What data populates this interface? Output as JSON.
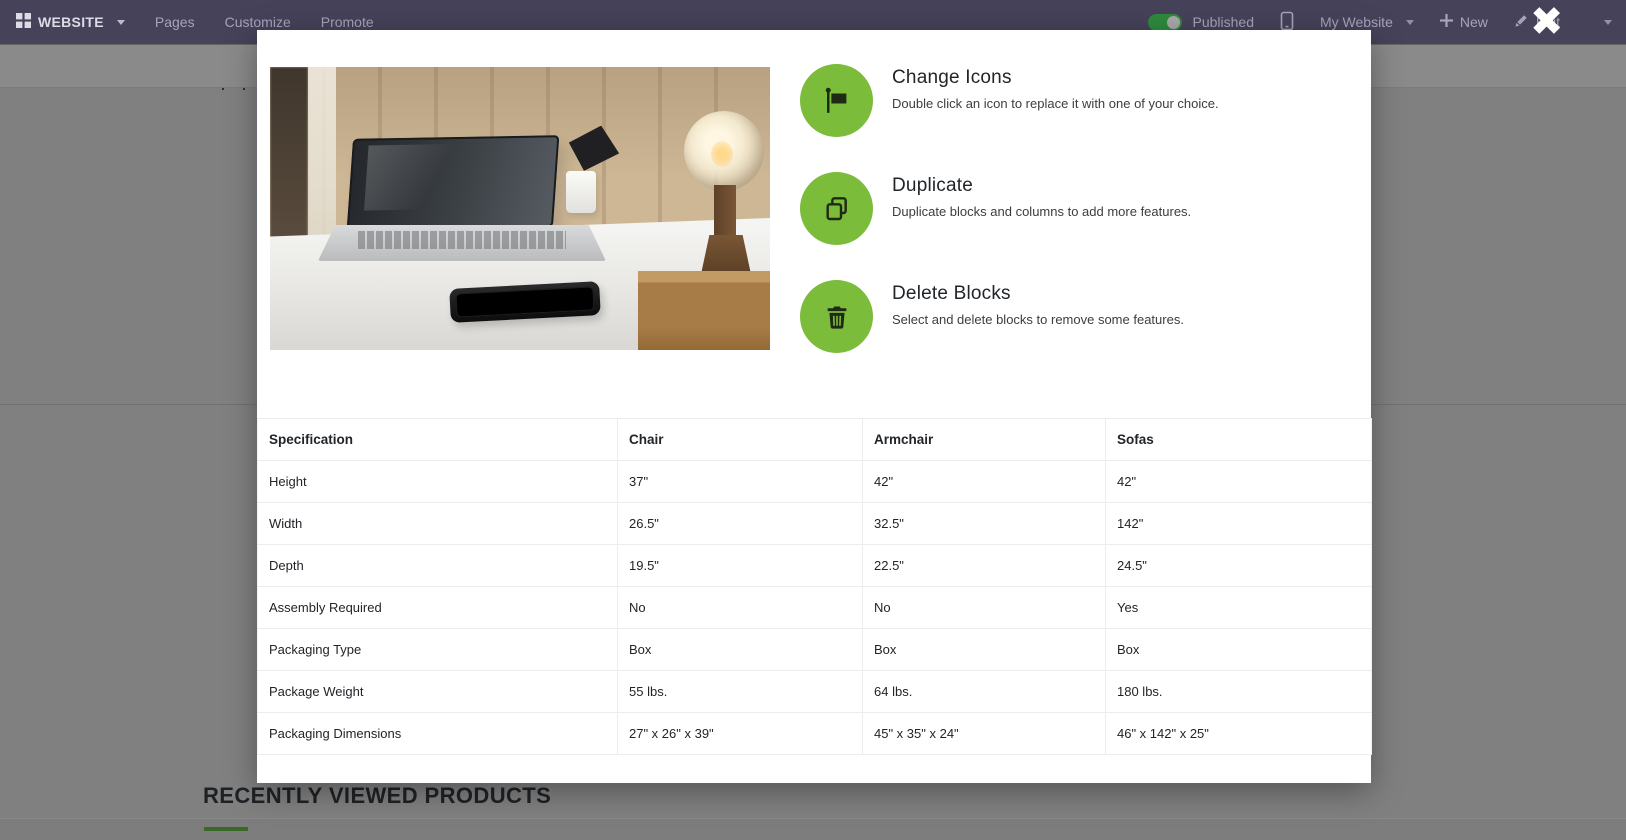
{
  "navbar": {
    "brand": {
      "label": "WEBSITE"
    },
    "menu_items": [
      "Pages",
      "Customize",
      "Promote"
    ],
    "right": {
      "published_label": "Published",
      "published_state": "on",
      "my_website_label": "My Website",
      "new_label": "New",
      "edit_label": "Edit",
      "close_glyph": "✖"
    },
    "colors": {
      "background": "#46425a",
      "text_muted": "#a7a3ba",
      "text_bright": "#dcdbe6",
      "toggle_on": "#2e8b3d"
    }
  },
  "modal": {
    "accent_color": "#7cbc3b",
    "features": [
      {
        "icon": "flag-icon",
        "title": "Change Icons",
        "description": "Double click an icon to replace it with one of your choice."
      },
      {
        "icon": "copy-icon",
        "title": "Duplicate",
        "description": "Duplicate blocks and columns to add more features."
      },
      {
        "icon": "trash-icon",
        "title": "Delete Blocks",
        "description": "Select and delete blocks to remove some features."
      }
    ],
    "table": {
      "headers": [
        "Specification",
        "Chair",
        "Armchair",
        "Sofas"
      ],
      "rows": [
        [
          "Height",
          "37\"",
          "42\"",
          "42\""
        ],
        [
          "Width",
          "26.5\"",
          "32.5\"",
          "142\""
        ],
        [
          "Depth",
          "19.5\"",
          "22.5\"",
          "24.5\""
        ],
        [
          "Assembly Required",
          "No",
          "No",
          "Yes"
        ],
        [
          "Packaging Type",
          "Box",
          "Box",
          "Box"
        ],
        [
          "Package Weight",
          "55 lbs.",
          "64 lbs.",
          "180 lbs."
        ],
        [
          "Packaging Dimensions",
          "27\" x 26\" x 39\"",
          "45\" x 35\" x 24\"",
          "46\" x 142\" x 25\""
        ]
      ]
    }
  },
  "page_background": {
    "section_title": "RECENTLY VIEWED PRODUCTS",
    "breadcrumb_dots": "· ·",
    "underline_color": "#6abd45"
  }
}
